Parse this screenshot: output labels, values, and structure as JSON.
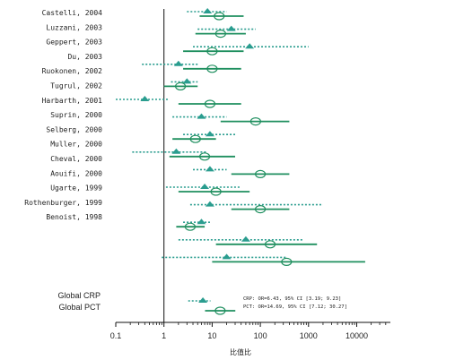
{
  "chart_data": {
    "type": "forest",
    "x_scale": "log",
    "xlim": [
      0.1,
      50000
    ],
    "reference_line": 1,
    "xticks": [
      0.1,
      1,
      10,
      100,
      1000,
      10000
    ],
    "xtick_labels": [
      "0.1",
      "1",
      "10",
      "100",
      "1000",
      "10000"
    ],
    "xlabel": "比值比",
    "colors": {
      "crp": "#2a9d8f",
      "pct": "#1f8f5f"
    },
    "studies": [
      {
        "label": "Castelli, 2004",
        "crp": {
          "or": 8,
          "lo": 3,
          "hi": 20
        },
        "pct": {
          "or": 14,
          "lo": 5.5,
          "hi": 45
        }
      },
      {
        "label": "Luzzani, 2003",
        "crp": {
          "or": 25,
          "lo": 5,
          "hi": 80
        },
        "pct": {
          "or": 15,
          "lo": 4.5,
          "hi": 50
        }
      },
      {
        "label": "Geppert, 2003",
        "crp": {
          "or": 60,
          "lo": 4,
          "hi": 1000
        },
        "pct": {
          "or": 10,
          "lo": 2.5,
          "hi": 45
        }
      },
      {
        "label": "Du, 2003",
        "crp": {
          "or": 2,
          "lo": 0.35,
          "hi": 5
        },
        "pct": {
          "or": 10,
          "lo": 2.5,
          "hi": 40
        }
      },
      {
        "label": "Ruokonen, 2002",
        "crp": {
          "or": 3,
          "lo": 1.4,
          "hi": 5
        },
        "pct": {
          "or": 2.2,
          "lo": 1,
          "hi": 5
        }
      },
      {
        "label": "Tugrul, 2002",
        "crp": {
          "or": 0.4,
          "lo": 0.1,
          "hi": 1.3
        },
        "pct": {
          "or": 9,
          "lo": 2,
          "hi": 40
        }
      },
      {
        "label": "Harbarth, 2001",
        "crp": {
          "or": 6,
          "lo": 1.5,
          "hi": 20
        },
        "pct": {
          "or": 80,
          "lo": 15,
          "hi": 400
        }
      },
      {
        "label": "Suprin, 2000",
        "crp": {
          "or": 9,
          "lo": 2.5,
          "hi": 30
        },
        "pct": {
          "or": 4.5,
          "lo": 1.5,
          "hi": 12
        }
      },
      {
        "label": "Selberg, 2000",
        "crp": {
          "or": 1.8,
          "lo": 0.22,
          "hi": 8
        },
        "pct": {
          "or": 7,
          "lo": 1.3,
          "hi": 30
        }
      },
      {
        "label": "Muller, 2000",
        "crp": {
          "or": 9,
          "lo": 4,
          "hi": 20
        },
        "pct": {
          "or": 100,
          "lo": 25,
          "hi": 400
        }
      },
      {
        "label": "Cheval, 2000",
        "crp": {
          "or": 7,
          "lo": 1.1,
          "hi": 40
        },
        "pct": {
          "or": 12,
          "lo": 2,
          "hi": 60
        }
      },
      {
        "label": "Aouifi, 2000",
        "crp": {
          "or": 9,
          "lo": 3.5,
          "hi": 2000
        },
        "pct": {
          "or": 100,
          "lo": 25,
          "hi": 400
        }
      },
      {
        "label": "Ugarte, 1999",
        "crp": {
          "or": 6,
          "lo": 2.5,
          "hi": 9
        },
        "pct": {
          "or": 3.5,
          "lo": 1.8,
          "hi": 7
        }
      },
      {
        "label": "Rothenburger, 1999",
        "crp": {
          "or": 50,
          "lo": 2,
          "hi": 800
        },
        "pct": {
          "or": 160,
          "lo": 12,
          "hi": 1500
        }
      },
      {
        "label": "Benoist, 1998",
        "crp": {
          "or": 20,
          "lo": 0.9,
          "hi": 350
        },
        "pct": {
          "or": 350,
          "lo": 10,
          "hi": 15000
        }
      }
    ],
    "global": [
      {
        "label": "Global CRP",
        "or": 6.43,
        "lo": 3.19,
        "hi": 9.23,
        "annotation": "CRP: OR=6.43, 95% CI [3.19; 9.23]"
      },
      {
        "label": "Global PCT",
        "or": 14.69,
        "lo": 7.12,
        "hi": 30.27,
        "annotation": "PCT: OR=14.69, 95% CI [7.12; 30.27]"
      }
    ]
  }
}
